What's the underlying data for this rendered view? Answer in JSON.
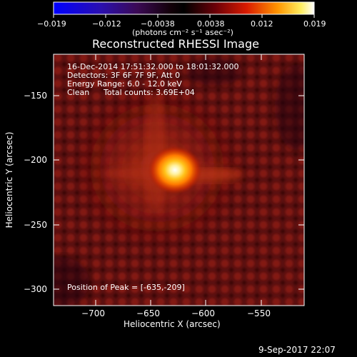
{
  "colorbar": {
    "tick_labels": [
      "−0.019",
      "−0.012",
      "−0.0038",
      "0.0038",
      "0.012",
      "0.019"
    ],
    "units": "(photons cm⁻² s⁻¹ asec⁻²)"
  },
  "title": "Reconstructed RHESSI Image",
  "info": {
    "time": "16-Dec-2014 17:51:32.000 to 18:01:32.000",
    "detectors": "Detectors: 3F 6F 7F 9F, Att 0",
    "energy": "Energy Range: 6.0 - 12.0 keV",
    "clean": "Clean",
    "counts": "Total counts: 3.69E+04"
  },
  "peak": "Position of Peak = [-635,-209]",
  "axes": {
    "xlabel": "Heliocentric X (arcsec)",
    "ylabel": "Heliocentric Y (arcsec)",
    "xticks": [
      "−700",
      "−650",
      "−600",
      "−550"
    ],
    "yticks": [
      "−150",
      "−200",
      "−250",
      "−300"
    ]
  },
  "timestamp": "9-Sep-2017 22:07"
}
